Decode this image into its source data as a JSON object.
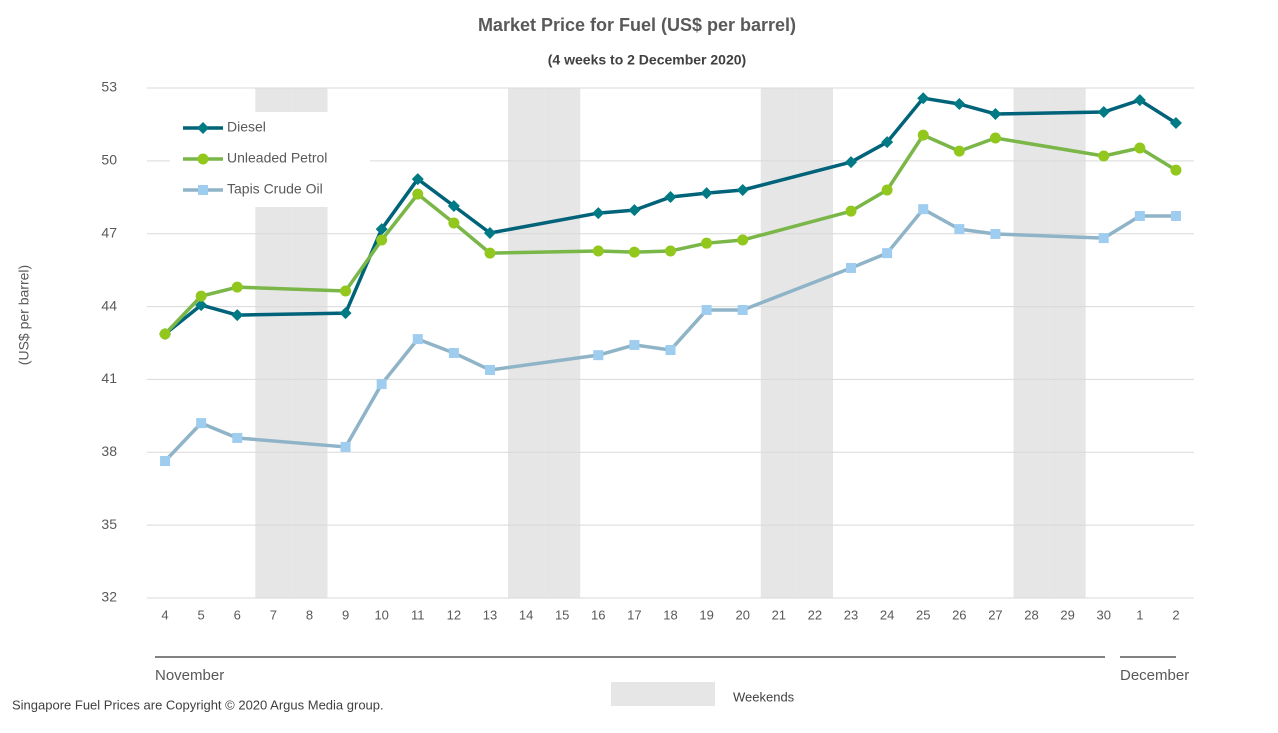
{
  "chart_data": {
    "type": "line",
    "title": "Market Price for Fuel (US$ per barrel)",
    "subtitle": "(4 weeks to 2 December 2020)",
    "y_label": "(US$ per barrel)",
    "categories": [
      "4",
      "5",
      "6",
      "7",
      "8",
      "9",
      "10",
      "11",
      "12",
      "13",
      "14",
      "15",
      "16",
      "17",
      "18",
      "19",
      "20",
      "21",
      "22",
      "23",
      "24",
      "25",
      "26",
      "27",
      "28",
      "29",
      "30",
      "1",
      "2"
    ],
    "months": [
      "November",
      "December"
    ],
    "shading_label": "Weekends",
    "shading_color": "#e6e6e6",
    "series": [
      {
        "name": "Diesel",
        "color": "#006379",
        "marker": "diamond",
        "marker_color": "#007a84",
        "values": [
          42.87,
          44.06,
          43.65,
          null,
          null,
          43.73,
          47.19,
          49.25,
          48.14,
          47.03,
          null,
          null,
          47.85,
          47.97,
          48.51,
          48.67,
          48.8,
          null,
          null,
          49.95,
          50.77,
          52.58,
          52.34,
          51.93,
          null,
          null,
          52.01,
          52.5,
          51.56
        ]
      },
      {
        "name": "Unleaded Petrol",
        "color": "#7ab648",
        "marker": "circle",
        "marker_color": "#92c81e",
        "values": [
          42.87,
          44.43,
          44.8,
          null,
          null,
          44.64,
          46.74,
          48.63,
          47.44,
          46.2,
          null,
          null,
          46.29,
          46.24,
          46.29,
          46.61,
          46.74,
          null,
          null,
          47.93,
          48.8,
          51.06,
          50.4,
          50.94,
          null,
          null,
          50.2,
          50.53,
          49.62
        ]
      },
      {
        "name": "Tapis Crude Oil",
        "color": "#8fb4c8",
        "marker": "square",
        "marker_color": "#9fcdf0",
        "values": [
          37.64,
          39.2,
          38.59,
          null,
          null,
          38.22,
          40.81,
          42.66,
          42.09,
          41.39,
          null,
          null,
          42.0,
          42.42,
          42.21,
          43.86,
          43.86,
          null,
          null,
          45.59,
          46.2,
          48.01,
          47.19,
          46.99,
          null,
          null,
          46.82,
          47.73,
          47.73
        ]
      }
    ],
    "ylim": [
      32,
      53
    ],
    "yticks": [
      32,
      35,
      38,
      41,
      44,
      47,
      50,
      53
    ],
    "grid": true,
    "legend": "upper left",
    "footer": "Singapore Fuel Prices are Copyright © 2020 Argus Media group."
  }
}
